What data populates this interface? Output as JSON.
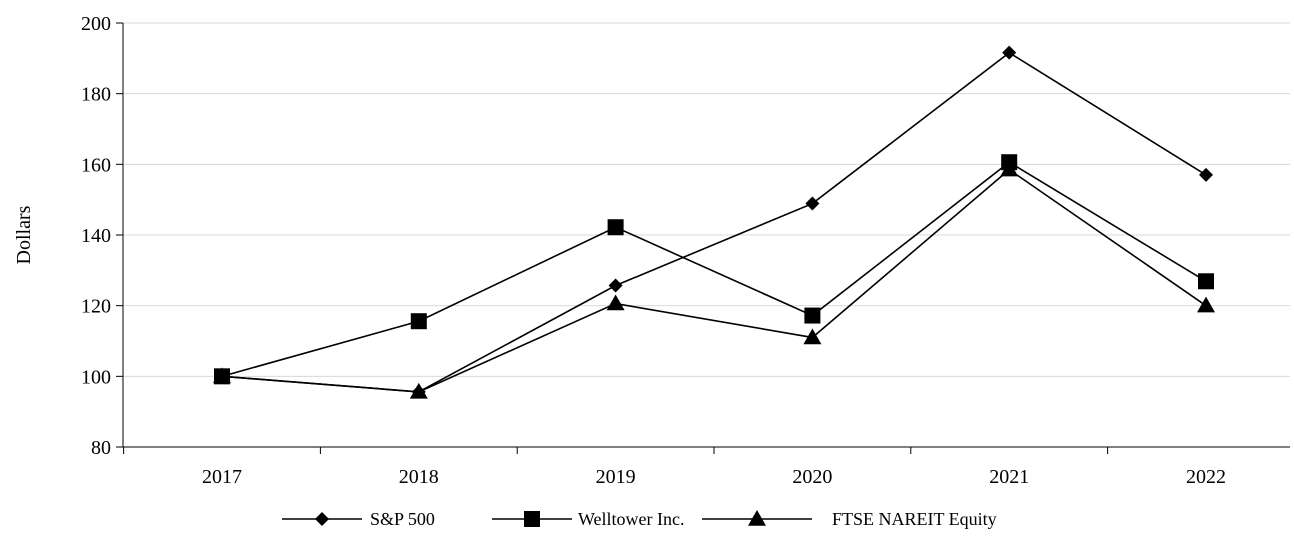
{
  "chart_data": {
    "type": "line",
    "title": "",
    "xlabel": "",
    "ylabel": "Dollars",
    "categories": [
      "2017",
      "2018",
      "2019",
      "2020",
      "2021",
      "2022"
    ],
    "ylim": [
      80,
      200
    ],
    "yticks": [
      80,
      100,
      120,
      140,
      160,
      180,
      200
    ],
    "grid": "horizontal",
    "legend_position": "bottom",
    "series": [
      {
        "name": "S&P 500",
        "marker": "diamond",
        "color": "#000000",
        "values": [
          100,
          95.6,
          125.7,
          148.9,
          191.6,
          157.0
        ]
      },
      {
        "name": "Welltower Inc.",
        "marker": "square",
        "color": "#000000",
        "values": [
          100,
          115.6,
          142.2,
          117.2,
          160.6,
          126.9
        ]
      },
      {
        "name": "FTSE NAREIT Equity",
        "marker": "triangle",
        "color": "#000000",
        "values": [
          100,
          95.6,
          120.6,
          111.0,
          158.5,
          120.0
        ]
      }
    ]
  }
}
